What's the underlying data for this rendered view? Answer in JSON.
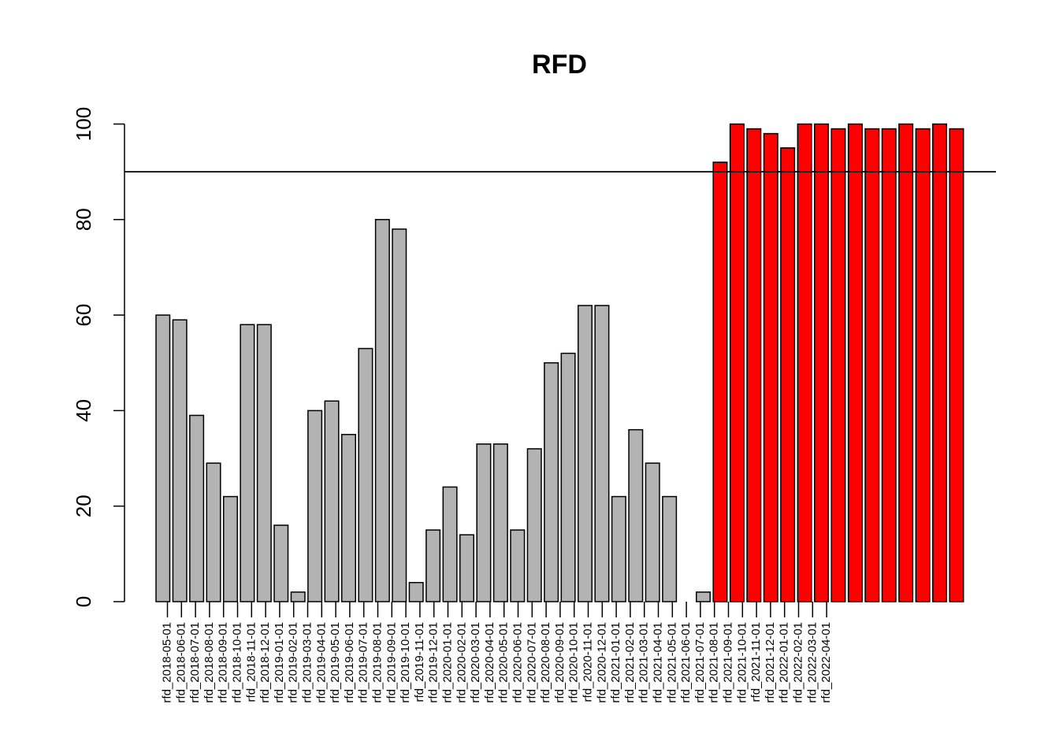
{
  "chart_data": {
    "type": "bar",
    "title": "RFD",
    "xlabel": "",
    "ylabel": "",
    "ylim": [
      0,
      100
    ],
    "yticks": [
      0,
      20,
      40,
      60,
      80,
      100
    ],
    "reference_line": 90,
    "colors": {
      "below": "#b3b3b3",
      "above": "#ff0000",
      "line": "#000000",
      "outline": "#000000"
    },
    "categories": [
      "rfd_2018-05-01",
      "rfd_2018-06-01",
      "rfd_2018-07-01",
      "rfd_2018-08-01",
      "rfd_2018-09-01",
      "rfd_2018-10-01",
      "rfd_2018-11-01",
      "rfd_2018-12-01",
      "rfd_2019-01-01",
      "rfd_2019-02-01",
      "rfd_2019-03-01",
      "rfd_2019-04-01",
      "rfd_2019-05-01",
      "rfd_2019-06-01",
      "rfd_2019-07-01",
      "rfd_2019-08-01",
      "rfd_2019-09-01",
      "rfd_2019-10-01",
      "rfd_2019-11-01",
      "rfd_2019-12-01",
      "rfd_2020-01-01",
      "rfd_2020-02-01",
      "rfd_2020-03-01",
      "rfd_2020-04-01",
      "rfd_2020-05-01",
      "rfd_2020-06-01",
      "rfd_2020-07-01",
      "rfd_2020-08-01",
      "rfd_2020-09-01",
      "rfd_2020-10-01",
      "rfd_2020-11-01",
      "rfd_2020-12-01",
      "rfd_2021-01-01",
      "rfd_2021-02-01",
      "rfd_2021-03-01",
      "rfd_2021-04-01",
      "rfd_2021-05-01",
      "rfd_2021-06-01",
      "rfd_2021-07-01",
      "rfd_2021-08-01",
      "rfd_2021-09-01",
      "rfd_2021-10-01",
      "rfd_2021-11-01",
      "rfd_2021-12-01",
      "rfd_2022-01-01",
      "rfd_2022-02-01",
      "rfd_2022-03-01",
      "rfd_2022-04-01"
    ],
    "values": [
      60,
      59,
      39,
      29,
      22,
      58,
      58,
      16,
      2,
      40,
      42,
      35,
      53,
      80,
      78,
      4,
      15,
      24,
      14,
      33,
      33,
      15,
      32,
      50,
      52,
      62,
      62,
      22,
      36,
      29,
      22,
      0,
      2,
      92,
      100,
      99,
      98,
      95,
      100,
      100,
      99,
      100,
      99,
      99,
      100,
      99,
      100,
      99
    ],
    "series_colors": [
      "below",
      "below",
      "below",
      "below",
      "below",
      "below",
      "below",
      "below",
      "below",
      "below",
      "below",
      "below",
      "below",
      "below",
      "below",
      "below",
      "below",
      "below",
      "below",
      "below",
      "below",
      "below",
      "below",
      "below",
      "below",
      "below",
      "below",
      "below",
      "below",
      "below",
      "below",
      "below",
      "below",
      "above",
      "above",
      "above",
      "above",
      "above",
      "above",
      "above",
      "above",
      "above",
      "above",
      "above",
      "above",
      "above",
      "above",
      "above"
    ],
    "grid": false,
    "legend": "none"
  }
}
